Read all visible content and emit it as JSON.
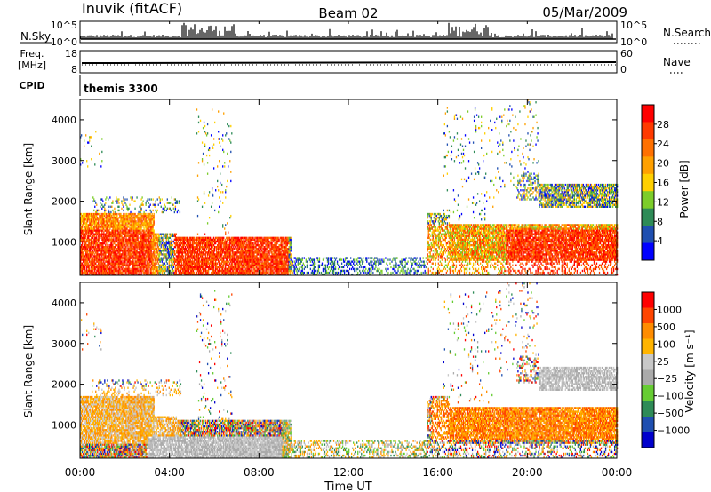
{
  "header": {
    "station": "Inuvik (fitACF)",
    "beam": "Beam 02",
    "date": "05/Mar/2009"
  },
  "aux": {
    "nsky_label": "N.Sky",
    "nsky_ticks": [
      "10^5",
      "10^0"
    ],
    "nsearch_label": "N.Search",
    "nsearch_ticks": [
      "10^5",
      "10^0"
    ],
    "freq_label": "Freq.",
    "freq_unit": "[MHz]",
    "freq_ticks": [
      "18",
      "8"
    ],
    "nave_label": "Nave",
    "nave_ticks": [
      "60",
      "0"
    ],
    "cpid_label": "CPID",
    "cpid_value": "themis 3300"
  },
  "colors": {
    "power_scale": [
      "#0000ff",
      "#1f4fb0",
      "#2e8b57",
      "#7ccd2a",
      "#ffd000",
      "#ffa000",
      "#ff7000",
      "#ff3a00",
      "#ff0000"
    ],
    "velocity_scale": [
      "#ff0000",
      "#ff4500",
      "#ff8c00",
      "#ffb400",
      "#c8c8c8",
      "#aaaaaa",
      "#66cc33",
      "#2e8b57",
      "#1f4fb0",
      "#0000cc"
    ]
  },
  "chart_data": [
    {
      "type": "heatmap",
      "name": "power",
      "ylabel": "Slant Range [km]",
      "yticks": [
        "4000",
        "3000",
        "2000",
        "1000"
      ],
      "ylim": [
        180,
        4500
      ],
      "xlim": [
        0,
        24
      ],
      "colorbar_label": "Power [dB]",
      "colorbar_ticks": [
        "28",
        "24",
        "20",
        "16",
        "12",
        "8",
        "4"
      ]
    },
    {
      "type": "heatmap",
      "name": "velocity",
      "ylabel": "Slant Range [km]",
      "yticks": [
        "4000",
        "3000",
        "2000",
        "1000"
      ],
      "ylim": [
        180,
        4500
      ],
      "xlim": [
        0,
        24
      ],
      "xlabel": "Time UT",
      "xticks": [
        "00:00",
        "04:00",
        "08:00",
        "12:00",
        "16:00",
        "20:00",
        "00:00"
      ],
      "colorbar_label": "Velocity [m s⁻¹]",
      "colorbar_ticks": [
        "1000",
        "500",
        "100",
        "25",
        "−25",
        "−100",
        "−500",
        "−1000"
      ]
    }
  ]
}
